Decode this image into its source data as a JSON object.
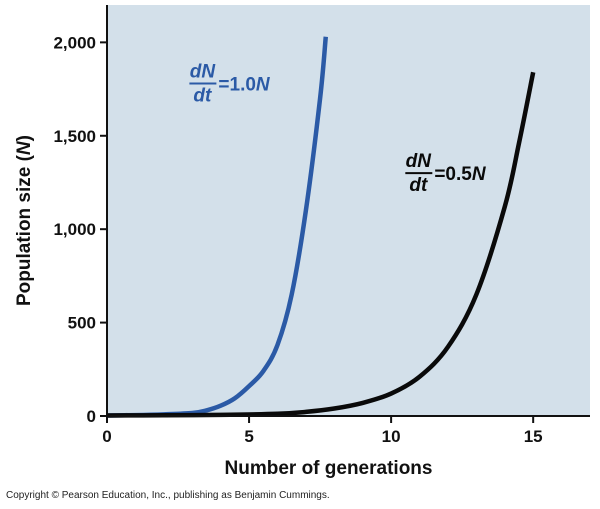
{
  "chart_data": {
    "type": "line",
    "title": "",
    "xlabel": "Number of generations",
    "ylabel": "Population size (N)",
    "xlim": [
      0,
      17
    ],
    "ylim": [
      0,
      2200
    ],
    "x_ticks": [
      0,
      5,
      10,
      15
    ],
    "x_tick_labels": [
      "0",
      "5",
      "10",
      "15"
    ],
    "y_ticks": [
      0,
      500,
      1000,
      1500,
      2000
    ],
    "y_tick_labels": [
      "0",
      "500",
      "1,000",
      "1,500",
      "2,000"
    ],
    "grid": false,
    "background_color": "#d3e0ea",
    "series": [
      {
        "name": "dN/dt = 1.0N",
        "color": "#2b5aa6",
        "x": [
          0,
          1,
          2,
          3,
          3.5,
          4,
          4.5,
          5,
          5.5,
          6,
          6.5,
          7,
          7.5,
          7.7
        ],
        "y": [
          3,
          5,
          9,
          16,
          30,
          55,
          95,
          160,
          240,
          380,
          650,
          1100,
          1700,
          2030
        ]
      },
      {
        "name": "dN/dt = 0.5N",
        "color": "#0a0a0a",
        "x": [
          0,
          2,
          4,
          6,
          7,
          8,
          9,
          10,
          11,
          12,
          13,
          14,
          14.5,
          15
        ],
        "y": [
          3,
          4,
          6,
          12,
          22,
          40,
          70,
          120,
          210,
          370,
          650,
          1120,
          1460,
          1840
        ]
      }
    ],
    "annotations": [
      {
        "series_index": 0,
        "numerator": "dN",
        "denominator": "dt",
        "equals": "=",
        "rate": "1.0",
        "variable": "N",
        "color": "#2b5aa6",
        "anchor_x": 2.9,
        "anchor_y": 1780
      },
      {
        "series_index": 1,
        "numerator": "dN",
        "denominator": "dt",
        "equals": "=",
        "rate": "0.5",
        "variable": "N",
        "color": "#0a0a0a",
        "anchor_x": 10.5,
        "anchor_y": 1300
      }
    ]
  },
  "footer": {
    "copyright": "Copyright © Pearson Education, Inc., publishing as Benjamin Cummings."
  }
}
